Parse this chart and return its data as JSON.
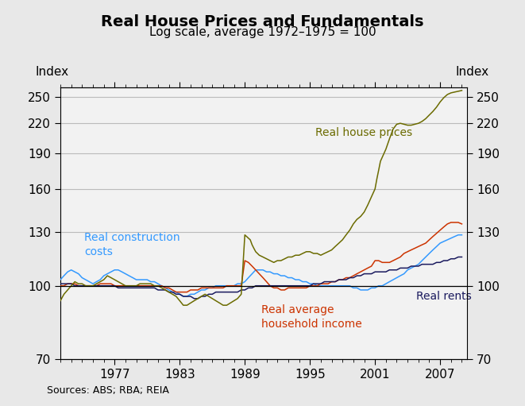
{
  "title": "Real House Prices and Fundamentals",
  "subtitle": "Log scale, average 1972–1975 = 100",
  "ylabel_left": "Index",
  "ylabel_right": "Index",
  "source": "Sources: ABS; RBA; REIA",
  "yticks": [
    70,
    100,
    130,
    160,
    190,
    220,
    250
  ],
  "xticks": [
    1977,
    1983,
    1989,
    1995,
    2001,
    2007
  ],
  "xlim": [
    1972.0,
    2009.5
  ],
  "ylim_log": [
    70,
    262
  ],
  "bg_color": "#e8e8e8",
  "plot_bg_color": "#f2f2f2",
  "colors": {
    "house_prices": "#6b6b00",
    "construction_costs": "#3399ff",
    "household_income": "#cc3300",
    "rents": "#1a1a5e"
  },
  "house_prices_x": [
    1972.0,
    1972.33,
    1972.67,
    1973.0,
    1973.33,
    1973.67,
    1974.0,
    1974.33,
    1974.67,
    1975.0,
    1975.33,
    1975.67,
    1976.0,
    1976.33,
    1976.67,
    1977.0,
    1977.33,
    1977.67,
    1978.0,
    1978.33,
    1978.67,
    1979.0,
    1979.33,
    1979.67,
    1980.0,
    1980.33,
    1980.67,
    1981.0,
    1981.33,
    1981.67,
    1982.0,
    1982.33,
    1982.67,
    1983.0,
    1983.33,
    1983.67,
    1984.0,
    1984.33,
    1984.67,
    1985.0,
    1985.33,
    1985.67,
    1986.0,
    1986.33,
    1986.67,
    1987.0,
    1987.33,
    1987.67,
    1988.0,
    1988.33,
    1988.67,
    1989.0,
    1989.17,
    1989.33,
    1989.5,
    1989.67,
    1989.83,
    1990.0,
    1990.33,
    1990.67,
    1991.0,
    1991.33,
    1991.67,
    1992.0,
    1992.33,
    1992.67,
    1993.0,
    1993.33,
    1993.67,
    1994.0,
    1994.33,
    1994.67,
    1995.0,
    1995.33,
    1995.67,
    1996.0,
    1996.33,
    1996.67,
    1997.0,
    1997.33,
    1997.67,
    1998.0,
    1998.33,
    1998.67,
    1999.0,
    1999.33,
    1999.67,
    2000.0,
    2000.33,
    2000.67,
    2001.0,
    2001.17,
    2001.33,
    2001.5,
    2002.0,
    2002.33,
    2002.67,
    2003.0,
    2003.33,
    2003.67,
    2004.0,
    2004.33,
    2004.67,
    2005.0,
    2005.33,
    2005.67,
    2006.0,
    2006.33,
    2006.67,
    2007.0,
    2007.33,
    2007.67,
    2008.0,
    2008.33,
    2008.67,
    2009.0
  ],
  "house_prices_y": [
    93,
    96,
    98,
    100,
    102,
    101,
    101,
    100,
    100,
    100,
    101,
    102,
    103,
    105,
    104,
    103,
    102,
    101,
    100,
    100,
    100,
    100,
    101,
    101,
    101,
    101,
    100,
    100,
    99,
    98,
    97,
    96,
    95,
    93,
    91,
    91,
    92,
    93,
    94,
    95,
    96,
    95,
    94,
    93,
    92,
    91,
    91,
    92,
    93,
    94,
    96,
    128,
    127,
    126,
    125,
    122,
    120,
    118,
    116,
    115,
    114,
    113,
    112,
    113,
    113,
    114,
    115,
    115,
    116,
    116,
    117,
    118,
    118,
    117,
    117,
    116,
    117,
    118,
    119,
    121,
    123,
    125,
    128,
    131,
    135,
    138,
    140,
    143,
    148,
    154,
    160,
    168,
    175,
    183,
    194,
    204,
    214,
    219,
    220,
    219,
    218,
    218,
    219,
    220,
    222,
    225,
    229,
    233,
    238,
    244,
    249,
    253,
    255,
    256,
    257,
    258
  ],
  "construction_costs_x": [
    1972.0,
    1972.33,
    1972.67,
    1973.0,
    1973.33,
    1973.67,
    1974.0,
    1974.33,
    1974.67,
    1975.0,
    1975.33,
    1975.67,
    1976.0,
    1976.33,
    1976.67,
    1977.0,
    1977.33,
    1977.67,
    1978.0,
    1978.33,
    1978.67,
    1979.0,
    1979.33,
    1979.67,
    1980.0,
    1980.33,
    1980.67,
    1981.0,
    1981.33,
    1981.67,
    1982.0,
    1982.33,
    1982.67,
    1983.0,
    1983.33,
    1983.67,
    1984.0,
    1984.33,
    1984.67,
    1985.0,
    1985.33,
    1985.67,
    1986.0,
    1986.33,
    1986.67,
    1987.0,
    1987.33,
    1987.67,
    1988.0,
    1988.33,
    1988.67,
    1989.0,
    1989.33,
    1989.67,
    1990.0,
    1990.33,
    1990.67,
    1991.0,
    1991.33,
    1991.67,
    1992.0,
    1992.33,
    1992.67,
    1993.0,
    1993.33,
    1993.67,
    1994.0,
    1994.33,
    1994.67,
    1995.0,
    1995.33,
    1995.67,
    1996.0,
    1996.33,
    1996.67,
    1997.0,
    1997.33,
    1997.67,
    1998.0,
    1998.33,
    1998.67,
    1999.0,
    1999.33,
    1999.67,
    2000.0,
    2000.33,
    2000.67,
    2001.0,
    2001.33,
    2001.67,
    2002.0,
    2002.33,
    2002.67,
    2003.0,
    2003.33,
    2003.67,
    2004.0,
    2004.33,
    2004.67,
    2005.0,
    2005.33,
    2005.67,
    2006.0,
    2006.33,
    2006.67,
    2007.0,
    2007.33,
    2007.67,
    2008.0,
    2008.33,
    2008.67,
    2009.0
  ],
  "construction_costs_y": [
    103,
    105,
    107,
    108,
    107,
    106,
    104,
    103,
    102,
    101,
    102,
    103,
    105,
    106,
    107,
    108,
    108,
    107,
    106,
    105,
    104,
    103,
    103,
    103,
    103,
    102,
    102,
    101,
    100,
    99,
    98,
    97,
    97,
    96,
    95,
    95,
    96,
    96,
    97,
    98,
    98,
    99,
    99,
    100,
    100,
    100,
    100,
    100,
    100,
    101,
    101,
    102,
    104,
    106,
    108,
    108,
    108,
    107,
    107,
    106,
    106,
    105,
    105,
    104,
    104,
    103,
    103,
    102,
    102,
    101,
    101,
    100,
    100,
    100,
    100,
    100,
    100,
    100,
    100,
    100,
    100,
    99,
    99,
    98,
    98,
    98,
    99,
    99,
    100,
    100,
    101,
    102,
    103,
    104,
    105,
    106,
    108,
    109,
    110,
    111,
    113,
    115,
    117,
    119,
    121,
    123,
    124,
    125,
    126,
    127,
    128,
    128
  ],
  "household_income_x": [
    1972.0,
    1972.33,
    1972.67,
    1973.0,
    1973.33,
    1973.67,
    1974.0,
    1974.33,
    1974.67,
    1975.0,
    1975.33,
    1975.67,
    1976.0,
    1976.33,
    1976.67,
    1977.0,
    1977.33,
    1977.67,
    1978.0,
    1978.33,
    1978.67,
    1979.0,
    1979.33,
    1979.67,
    1980.0,
    1980.33,
    1980.67,
    1981.0,
    1981.33,
    1981.67,
    1982.0,
    1982.33,
    1982.67,
    1983.0,
    1983.33,
    1983.67,
    1984.0,
    1984.33,
    1984.67,
    1985.0,
    1985.33,
    1985.67,
    1986.0,
    1986.33,
    1986.67,
    1987.0,
    1987.33,
    1987.67,
    1988.0,
    1988.33,
    1988.67,
    1989.0,
    1989.33,
    1989.67,
    1990.0,
    1990.33,
    1990.67,
    1991.0,
    1991.33,
    1991.67,
    1992.0,
    1992.33,
    1992.67,
    1993.0,
    1993.33,
    1993.67,
    1994.0,
    1994.33,
    1994.67,
    1995.0,
    1995.33,
    1995.67,
    1996.0,
    1996.33,
    1996.67,
    1997.0,
    1997.33,
    1997.67,
    1998.0,
    1998.33,
    1998.67,
    1999.0,
    1999.33,
    1999.67,
    2000.0,
    2000.33,
    2000.67,
    2001.0,
    2001.33,
    2001.67,
    2002.0,
    2002.33,
    2002.67,
    2003.0,
    2003.33,
    2003.67,
    2004.0,
    2004.33,
    2004.67,
    2005.0,
    2005.33,
    2005.67,
    2006.0,
    2006.33,
    2006.67,
    2007.0,
    2007.33,
    2007.67,
    2008.0,
    2008.33,
    2008.67,
    2009.0
  ],
  "household_income_y": [
    100,
    100,
    101,
    101,
    101,
    100,
    100,
    100,
    100,
    100,
    100,
    101,
    101,
    101,
    101,
    100,
    100,
    100,
    100,
    100,
    100,
    100,
    100,
    100,
    100,
    100,
    100,
    100,
    100,
    99,
    99,
    98,
    97,
    97,
    97,
    97,
    98,
    98,
    98,
    99,
    99,
    99,
    99,
    99,
    99,
    99,
    100,
    100,
    100,
    100,
    100,
    113,
    112,
    110,
    108,
    106,
    104,
    102,
    100,
    99,
    99,
    98,
    98,
    99,
    99,
    99,
    99,
    99,
    99,
    100,
    100,
    100,
    101,
    101,
    101,
    102,
    102,
    103,
    103,
    104,
    104,
    105,
    106,
    107,
    108,
    109,
    110,
    113,
    113,
    112,
    112,
    112,
    113,
    114,
    115,
    117,
    118,
    119,
    120,
    121,
    122,
    123,
    125,
    127,
    129,
    131,
    133,
    135,
    136,
    136,
    136,
    135
  ],
  "rents_x": [
    1972.0,
    1972.33,
    1972.67,
    1973.0,
    1973.33,
    1973.67,
    1974.0,
    1974.33,
    1974.67,
    1975.0,
    1975.33,
    1975.67,
    1976.0,
    1976.33,
    1976.67,
    1977.0,
    1977.33,
    1977.67,
    1978.0,
    1978.33,
    1978.67,
    1979.0,
    1979.33,
    1979.67,
    1980.0,
    1980.33,
    1980.67,
    1981.0,
    1981.33,
    1981.67,
    1982.0,
    1982.33,
    1982.67,
    1983.0,
    1983.33,
    1983.67,
    1984.0,
    1984.33,
    1984.67,
    1985.0,
    1985.33,
    1985.67,
    1986.0,
    1986.33,
    1986.67,
    1987.0,
    1987.33,
    1987.67,
    1988.0,
    1988.33,
    1988.67,
    1989.0,
    1989.33,
    1989.67,
    1990.0,
    1990.33,
    1990.67,
    1991.0,
    1991.33,
    1991.67,
    1992.0,
    1992.33,
    1992.67,
    1993.0,
    1993.33,
    1993.67,
    1994.0,
    1994.33,
    1994.67,
    1995.0,
    1995.33,
    1995.67,
    1996.0,
    1996.33,
    1996.67,
    1997.0,
    1997.33,
    1997.67,
    1998.0,
    1998.33,
    1998.67,
    1999.0,
    1999.33,
    1999.67,
    2000.0,
    2000.33,
    2000.67,
    2001.0,
    2001.33,
    2001.67,
    2002.0,
    2002.33,
    2002.67,
    2003.0,
    2003.33,
    2003.67,
    2004.0,
    2004.33,
    2004.67,
    2005.0,
    2005.33,
    2005.67,
    2006.0,
    2006.33,
    2006.67,
    2007.0,
    2007.33,
    2007.67,
    2008.0,
    2008.33,
    2008.67,
    2009.0
  ],
  "rents_y": [
    101,
    101,
    101,
    101,
    100,
    100,
    100,
    100,
    100,
    100,
    100,
    100,
    100,
    100,
    100,
    100,
    99,
    99,
    99,
    99,
    99,
    99,
    99,
    99,
    99,
    99,
    99,
    98,
    98,
    98,
    97,
    97,
    96,
    96,
    95,
    95,
    95,
    94,
    94,
    95,
    95,
    96,
    96,
    97,
    97,
    97,
    97,
    97,
    97,
    97,
    98,
    98,
    99,
    99,
    100,
    100,
    100,
    100,
    100,
    100,
    100,
    100,
    100,
    100,
    100,
    100,
    100,
    100,
    100,
    100,
    101,
    101,
    101,
    102,
    102,
    102,
    102,
    103,
    103,
    103,
    104,
    104,
    105,
    105,
    106,
    106,
    106,
    107,
    107,
    107,
    107,
    108,
    108,
    108,
    109,
    109,
    109,
    110,
    110,
    110,
    111,
    111,
    111,
    111,
    112,
    112,
    113,
    113,
    114,
    114,
    115,
    115
  ]
}
